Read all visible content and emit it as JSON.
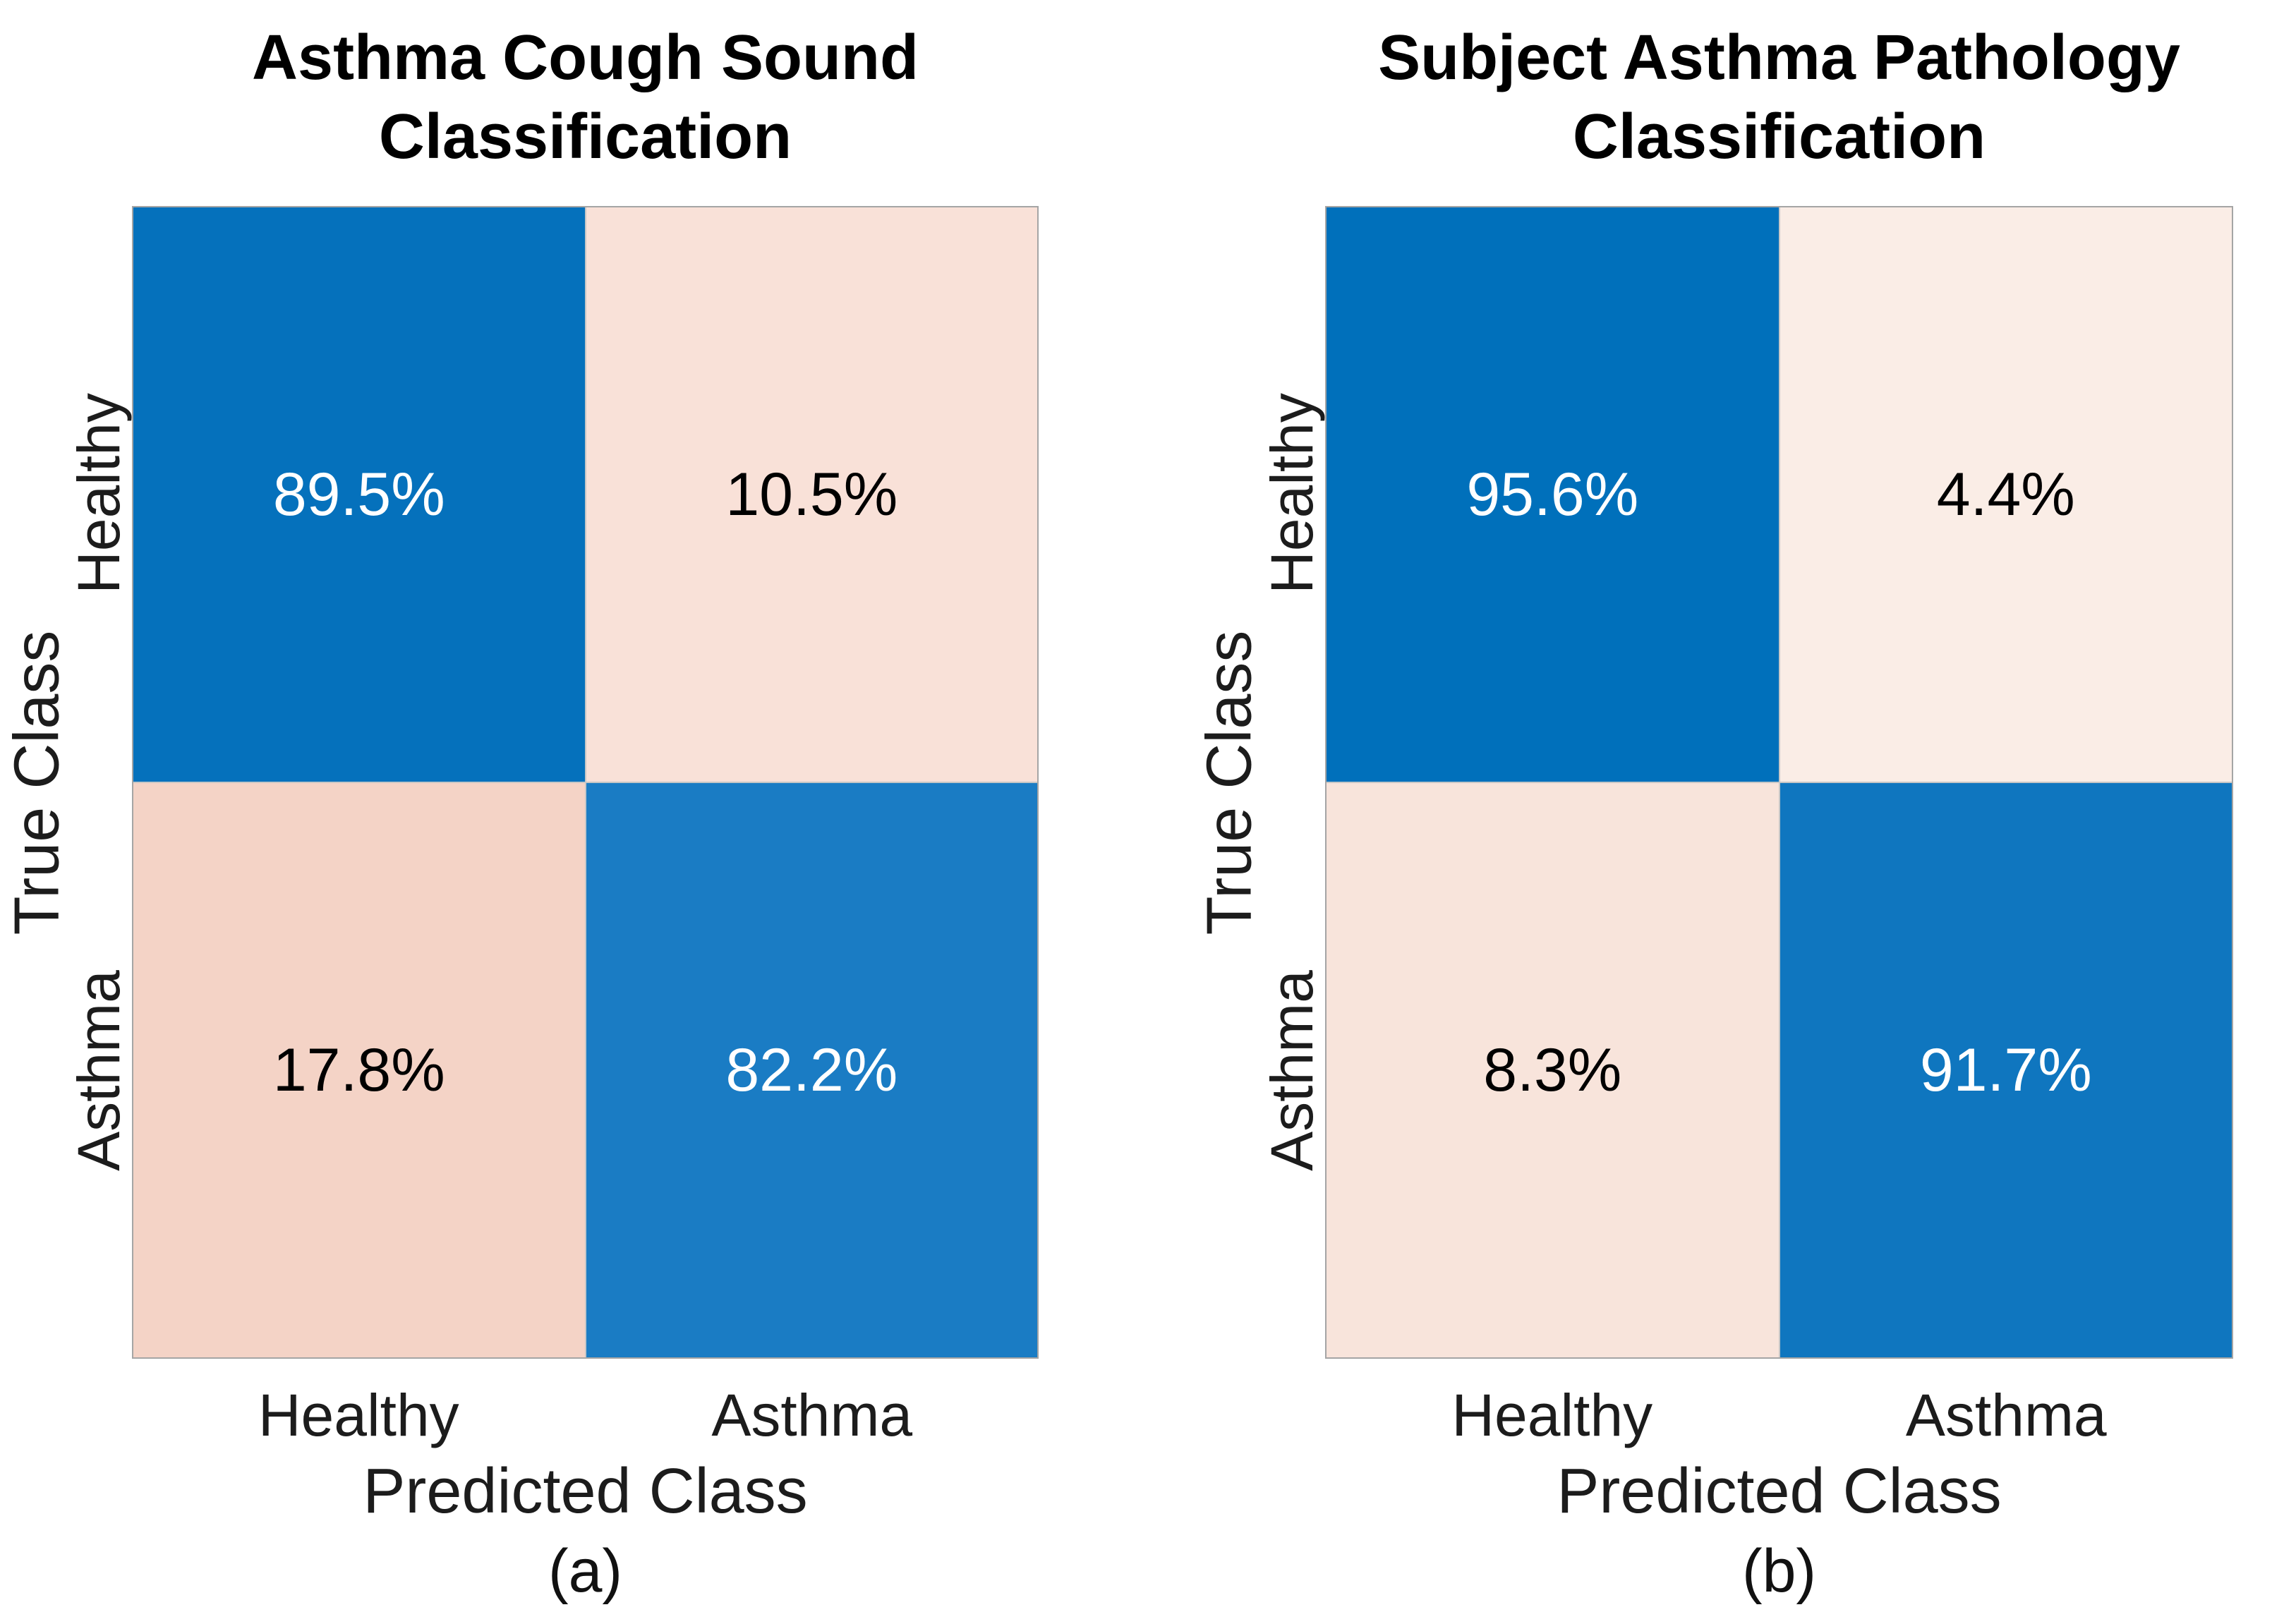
{
  "figure": {
    "background": "#ffffff",
    "frame_color": "#a5a5a5",
    "panels": [
      {
        "id": "a",
        "title_line1": "Asthma Cough Sound",
        "title_line2": "Classification",
        "y_axis_label": "True Class",
        "x_axis_label": "Predicted Class",
        "caption": "(a)",
        "row_labels": [
          "Healthy",
          "Asthma"
        ],
        "col_labels": [
          "Healthy",
          "Asthma"
        ],
        "cells": [
          {
            "value": "89.5%",
            "bg": "#0571bc",
            "fg": "#ffffff",
            "style": "background:#0571bc;color:#ffffff"
          },
          {
            "value": "10.5%",
            "bg": "#f9e1d8",
            "fg": "#000000",
            "style": "background:#f9e1d8;color:#000000"
          },
          {
            "value": "17.8%",
            "bg": "#f4d3c6",
            "fg": "#000000",
            "style": "background:#f4d3c6;color:#000000"
          },
          {
            "value": "82.2%",
            "bg": "#1a7cc4",
            "fg": "#ffffff",
            "style": "background:#1a7cc4;color:#ffffff"
          }
        ]
      },
      {
        "id": "b",
        "title_line1": "Subject Asthma Pathology",
        "title_line2": "Classification",
        "y_axis_label": "True Class",
        "x_axis_label": "Predicted Class",
        "caption": "(b)",
        "row_labels": [
          "Healthy",
          "Asthma"
        ],
        "col_labels": [
          "Healthy",
          "Asthma"
        ],
        "cells": [
          {
            "value": "95.6%",
            "bg": "#0070bb",
            "fg": "#ffffff",
            "style": "background:#0070bb;color:#ffffff"
          },
          {
            "value": "4.4%",
            "bg": "#faede6",
            "fg": "#000000",
            "style": "background:#faede6;color:#000000"
          },
          {
            "value": "8.3%",
            "bg": "#f8e4db",
            "fg": "#000000",
            "style": "background:#f8e4db;color:#000000"
          },
          {
            "value": "91.7%",
            "bg": "#0f76bf",
            "fg": "#ffffff",
            "style": "background:#0f76bf;color:#ffffff"
          }
        ]
      }
    ]
  },
  "chart_data": [
    {
      "type": "heatmap",
      "subtype": "confusion-matrix",
      "title": "Asthma Cough Sound Classification",
      "xlabel": "Predicted Class",
      "ylabel": "True Class",
      "x_categories": [
        "Healthy",
        "Asthma"
      ],
      "y_categories": [
        "Healthy",
        "Asthma"
      ],
      "values_percent": [
        [
          89.5,
          10.5
        ],
        [
          17.8,
          82.2
        ]
      ],
      "cell_text": [
        [
          "89.5%",
          "10.5%"
        ],
        [
          "17.8%",
          "82.2%"
        ]
      ],
      "caption": "(a)",
      "diagonal_color": "blue",
      "off_diagonal_color": "pink",
      "colors": [
        [
          "#0571bc",
          "#f9e1d8"
        ],
        [
          "#f4d3c6",
          "#1a7cc4"
        ]
      ],
      "grid": false,
      "legend": "none"
    },
    {
      "type": "heatmap",
      "subtype": "confusion-matrix",
      "title": "Subject Asthma Pathology Classification",
      "xlabel": "Predicted Class",
      "ylabel": "True Class",
      "x_categories": [
        "Healthy",
        "Asthma"
      ],
      "y_categories": [
        "Healthy",
        "Asthma"
      ],
      "values_percent": [
        [
          95.6,
          4.4
        ],
        [
          8.3,
          91.7
        ]
      ],
      "cell_text": [
        [
          "95.6%",
          "4.4%"
        ],
        [
          "8.3%",
          "91.7%"
        ]
      ],
      "caption": "(b)",
      "diagonal_color": "blue",
      "off_diagonal_color": "pink",
      "colors": [
        [
          "#0070bb",
          "#faede6"
        ],
        [
          "#f8e4db",
          "#0f76bf"
        ]
      ],
      "grid": false,
      "legend": "none"
    }
  ]
}
